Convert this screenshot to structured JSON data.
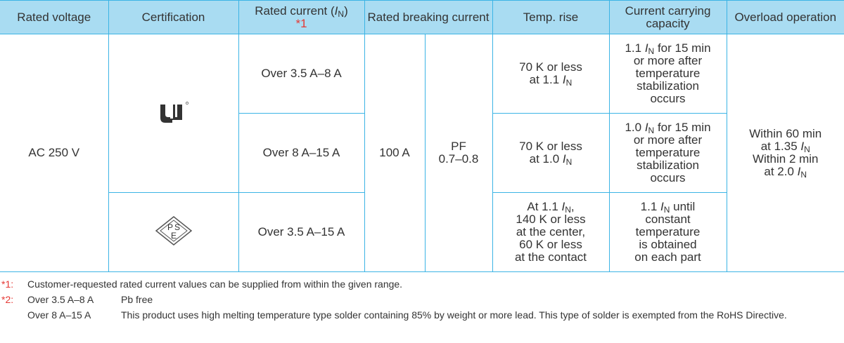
{
  "table": {
    "header": {
      "rated_voltage": "Rated voltage",
      "certification": "Certification",
      "rated_current": [
        [
          "Rated current (",
          "I",
          "N",
          ")"
        ]
      ],
      "rated_current_note": "*1",
      "rated_breaking_current": "Rated breaking current",
      "temp_rise": "Temp. rise",
      "current_carrying_capacity": "Current carrying capacity",
      "overload_operation": "Overload operation"
    },
    "rated_voltage": "AC 250 V",
    "pse_mark": [
      "P",
      "S",
      "E"
    ],
    "breaking_current": "100 A",
    "power_factor": [
      [
        "PF"
      ],
      [
        "0.7–0.8"
      ]
    ],
    "overload_operation": [
      [
        "Within 60 min"
      ],
      [
        "at 1.35 ",
        "I",
        "N"
      ],
      [
        "Within 2 min"
      ],
      [
        "at 2.0 ",
        "I",
        "N"
      ]
    ],
    "rows": [
      {
        "rated_current": "Over 3.5 A–8 A",
        "temp_rise": [
          [
            "70 K or less"
          ],
          [
            "at 1.1 ",
            "I",
            "N"
          ]
        ],
        "capacity": [
          [
            "1.1 ",
            "I",
            "N",
            " for 15 min"
          ],
          [
            "or more after"
          ],
          [
            "temperature"
          ],
          [
            "stabilization"
          ],
          [
            "occurs"
          ]
        ]
      },
      {
        "rated_current": "Over 8 A–15 A",
        "temp_rise": [
          [
            "70 K or less"
          ],
          [
            "at 1.0 ",
            "I",
            "N"
          ]
        ],
        "capacity": [
          [
            "1.0 ",
            "I",
            "N",
            " for 15 min"
          ],
          [
            "or more after"
          ],
          [
            "temperature"
          ],
          [
            "stabilization"
          ],
          [
            "occurs"
          ]
        ]
      },
      {
        "rated_current": "Over 3.5 A–15 A",
        "temp_rise": [
          [
            "At 1.1 ",
            "I",
            "N",
            ","
          ],
          [
            "140 K or less"
          ],
          [
            "at the center,"
          ],
          [
            "60 K or less"
          ],
          [
            "at the contact"
          ]
        ],
        "capacity": [
          [
            "1.1 ",
            "I",
            "N",
            " until"
          ],
          [
            "constant"
          ],
          [
            "temperature"
          ],
          [
            "is obtained"
          ],
          [
            "on each part"
          ]
        ]
      }
    ]
  },
  "notes": [
    {
      "mark": "*1:",
      "text": "Customer-requested rated current values can be supplied from within the given range."
    },
    {
      "mark": "*2:",
      "items": [
        {
          "range": "Over 3.5 A–8 A",
          "text": "Pb free"
        },
        {
          "range": "Over 8 A–15 A",
          "text": "This product uses high melting temperature type solder containing 85% by weight or more lead. This type of solder is exempted from the RoHS Directive."
        }
      ]
    }
  ]
}
